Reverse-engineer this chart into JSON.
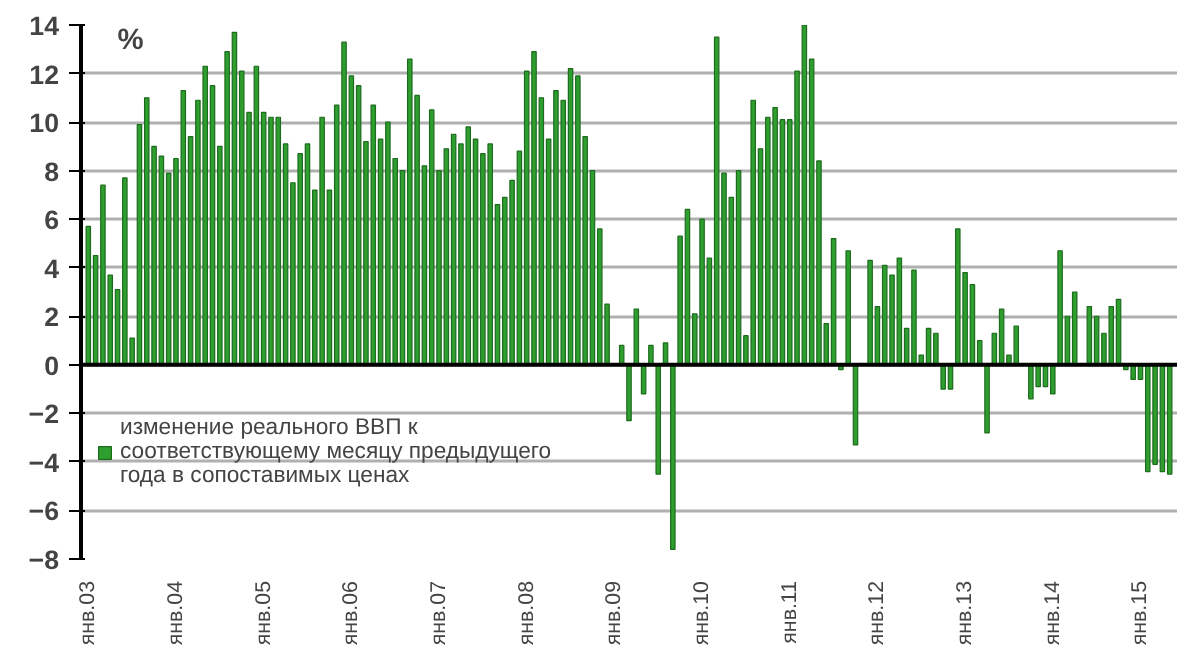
{
  "chart_data": {
    "type": "bar",
    "ylabel": "%",
    "categories": [
      "янв.03",
      null,
      null,
      null,
      null,
      null,
      null,
      null,
      null,
      null,
      null,
      null,
      "янв.04",
      null,
      null,
      null,
      null,
      null,
      null,
      null,
      null,
      null,
      null,
      null,
      "янв.05",
      null,
      null,
      null,
      null,
      null,
      null,
      null,
      null,
      null,
      null,
      null,
      "янв.06",
      null,
      null,
      null,
      null,
      null,
      null,
      null,
      null,
      null,
      null,
      null,
      "янв.07",
      null,
      null,
      null,
      null,
      null,
      null,
      null,
      null,
      null,
      null,
      null,
      "янв.08",
      null,
      null,
      null,
      null,
      null,
      null,
      null,
      null,
      null,
      null,
      null,
      "янв.09",
      null,
      null,
      null,
      null,
      null,
      null,
      null,
      null,
      null,
      null,
      null,
      "янв.10",
      null,
      null,
      null,
      null,
      null,
      null,
      null,
      null,
      null,
      null,
      null,
      "янв.11",
      null,
      null,
      null,
      null,
      null,
      null,
      null,
      null,
      null,
      null,
      null,
      "янв.12",
      null,
      null,
      null,
      null,
      null,
      null,
      null,
      null,
      null,
      null,
      null,
      "янв.13",
      null,
      null,
      null,
      null,
      null,
      null,
      null,
      null,
      null,
      null,
      null,
      "янв.14",
      null,
      null,
      null,
      null,
      null,
      null,
      null,
      null,
      null,
      null,
      null,
      "янв.15",
      null,
      null,
      null,
      null
    ],
    "series": [
      {
        "name": "изменение реального ВВП к соответствующему месяцу предыдущего года в сопоставимых ценах",
        "color": "#2e9e2e",
        "values": [
          5.7,
          4.5,
          7.4,
          3.7,
          3.1,
          7.7,
          1.1,
          9.9,
          11.0,
          9.0,
          8.6,
          7.9,
          8.5,
          11.3,
          9.4,
          10.9,
          12.3,
          11.5,
          9.0,
          12.9,
          13.7,
          12.1,
          10.4,
          12.3,
          10.4,
          10.2,
          10.2,
          9.1,
          7.5,
          8.7,
          9.1,
          7.2,
          10.2,
          7.2,
          10.7,
          13.3,
          11.9,
          11.5,
          9.2,
          10.7,
          9.3,
          10.0,
          8.5,
          8.0,
          12.6,
          11.1,
          8.2,
          10.5,
          8.0,
          8.9,
          9.5,
          9.1,
          9.8,
          9.3,
          8.7,
          9.1,
          6.6,
          6.9,
          7.6,
          8.8,
          12.1,
          12.9,
          11.0,
          9.3,
          11.3,
          10.9,
          12.2,
          11.9,
          9.4,
          8.0,
          5.6,
          2.5,
          null,
          0.8,
          -2.3,
          2.3,
          -1.2,
          0.8,
          -4.5,
          0.9,
          -7.6,
          5.3,
          6.4,
          2.1,
          6.0,
          4.4,
          13.5,
          7.9,
          6.9,
          8.0,
          1.2,
          10.9,
          8.9,
          10.2,
          10.6,
          10.1,
          10.1,
          12.1,
          14.0,
          12.6,
          8.4,
          1.7,
          5.2,
          -0.2,
          4.7,
          -3.3,
          null,
          4.3,
          2.4,
          4.1,
          3.7,
          4.4,
          1.5,
          3.9,
          0.4,
          1.5,
          1.3,
          -1.0,
          -1.0,
          5.6,
          3.8,
          3.3,
          1.0,
          -2.8,
          1.3,
          2.3,
          0.4,
          1.6,
          null,
          -1.4,
          -0.9,
          -0.9,
          -1.2,
          4.7,
          2.0,
          3.0,
          null,
          2.4,
          2.0,
          1.3,
          2.4,
          2.7,
          -0.2,
          -0.6,
          -0.6,
          -4.4,
          -4.1,
          -4.4,
          -4.5
        ]
      }
    ],
    "ylim": [
      -8,
      14
    ],
    "yticks": [
      -8,
      -6,
      -4,
      -2,
      0,
      2,
      4,
      6,
      8,
      10,
      12,
      14
    ],
    "grid": "y",
    "legend": "left"
  }
}
